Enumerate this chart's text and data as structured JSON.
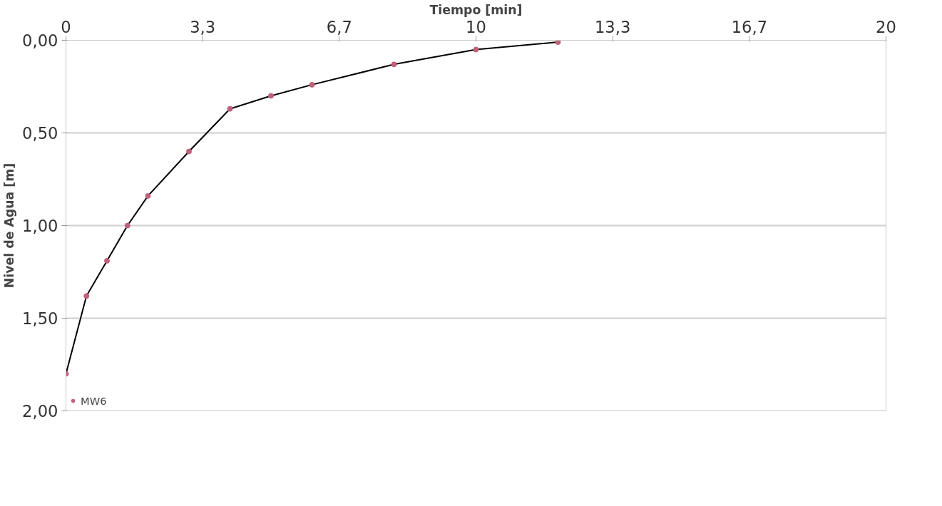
{
  "chart_data": {
    "type": "line",
    "xlabel": "Tiempo [min]",
    "ylabel": "Nivel de Agua [m]",
    "x": [
      0,
      0.5,
      1,
      1.5,
      2,
      3,
      4,
      5,
      6,
      8,
      10,
      12
    ],
    "series": [
      {
        "name": "MW6",
        "color": "#c0607a",
        "values": [
          1.8,
          1.38,
          1.19,
          1.0,
          0.84,
          0.6,
          0.37,
          0.3,
          0.24,
          0.13,
          0.05,
          0.01
        ]
      }
    ],
    "xlim": [
      0,
      20
    ],
    "xticks": [
      0,
      {
        "value": 3.333,
        "label": "3,3"
      },
      {
        "value": 6.667,
        "label": "6,7"
      },
      10,
      {
        "value": 13.333,
        "label": "13,3"
      },
      {
        "value": 16.667,
        "label": "16,7"
      },
      20
    ],
    "ylim": [
      2,
      0
    ],
    "yticks": [
      {
        "value": 0,
        "label": "0,00"
      },
      {
        "value": 0.5,
        "label": "0,50"
      },
      {
        "value": 1,
        "label": "1,00"
      },
      {
        "value": 1.5,
        "label": "1,50"
      },
      {
        "value": 2,
        "label": "2,00"
      }
    ],
    "grid": "y",
    "legend": "bottom left",
    "marker": "circle",
    "line_style": "solid"
  }
}
